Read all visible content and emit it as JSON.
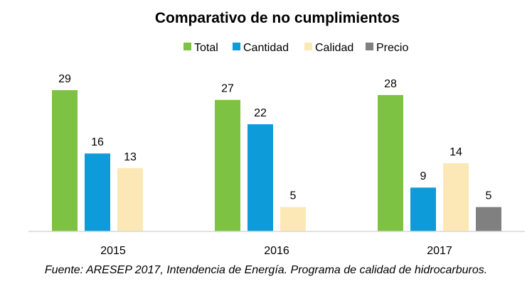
{
  "chart_data": {
    "type": "bar",
    "title": "Comparativo de no cumplimientos",
    "categories": [
      "2015",
      "2016",
      "2017"
    ],
    "series": [
      {
        "name": "Total",
        "color": "#7DC242",
        "values": [
          29,
          27,
          28
        ]
      },
      {
        "name": "Cantidad",
        "color": "#0E9BD9",
        "values": [
          16,
          22,
          9
        ]
      },
      {
        "name": "Calidad",
        "color": "#FCE8B6",
        "values": [
          13,
          5,
          14
        ]
      },
      {
        "name": "Precio",
        "color": "#808080",
        "values": [
          null,
          null,
          5
        ]
      }
    ],
    "ylim": [
      0,
      30
    ],
    "xlabel": "",
    "ylabel": "",
    "legend_position": "top",
    "grid": false
  },
  "source": "Fuente: ARESEP 2017, Intendencia de Energía. Programa de calidad de hidrocarburos."
}
